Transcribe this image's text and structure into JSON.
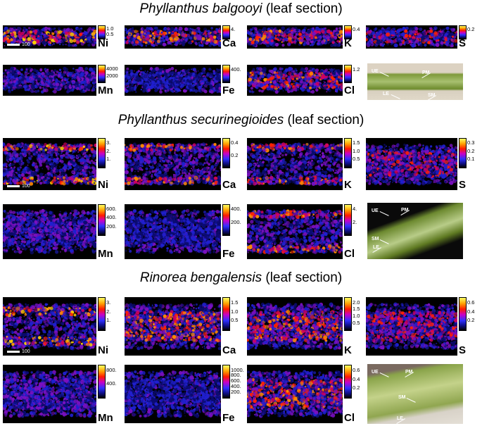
{
  "sections": [
    {
      "species": "Phyllanthus balgooyi",
      "suffix": " (leaf section)",
      "scale_label": "100",
      "maps": [
        {
          "element": "Ni",
          "ticks": [
            "1.0",
            "0.5"
          ]
        },
        {
          "element": "Ca",
          "ticks": [
            "4."
          ]
        },
        {
          "element": "K",
          "ticks": [
            "0.4"
          ]
        },
        {
          "element": "S",
          "ticks": [
            "0.2"
          ]
        },
        {
          "element": "Mn",
          "ticks": [
            "4000",
            "2000"
          ]
        },
        {
          "element": "Fe",
          "ticks": [
            "400."
          ]
        },
        {
          "element": "Cl",
          "ticks": [
            "1.2"
          ]
        }
      ],
      "photo_labels": [
        "UE",
        "PM",
        "LE",
        "SM"
      ]
    },
    {
      "species": "Phyllanthus securinegioides",
      "suffix": " (leaf section)",
      "scale_label": "100",
      "maps": [
        {
          "element": "Ni",
          "ticks": [
            "3.",
            "2.",
            "1."
          ]
        },
        {
          "element": "Ca",
          "ticks": [
            "0.4",
            "0.2"
          ]
        },
        {
          "element": "K",
          "ticks": [
            "1.5",
            "1.0",
            "0.5"
          ]
        },
        {
          "element": "S",
          "ticks": [
            "0.3",
            "0.2",
            "0.1"
          ]
        },
        {
          "element": "Mn",
          "ticks": [
            "600.",
            "400.",
            "200."
          ]
        },
        {
          "element": "Fe",
          "ticks": [
            "400.",
            "200."
          ]
        },
        {
          "element": "Cl",
          "ticks": [
            "4.",
            "2."
          ]
        }
      ],
      "photo_labels": [
        "UE",
        "PM",
        "SM",
        "LE"
      ]
    },
    {
      "species": "Rinorea bengalensis",
      "suffix": " (leaf section)",
      "scale_label": "100",
      "maps": [
        {
          "element": "Ni",
          "ticks": [
            "3.",
            "2.",
            "1."
          ]
        },
        {
          "element": "Ca",
          "ticks": [
            "1.5",
            "1.0",
            "0.5"
          ]
        },
        {
          "element": "K",
          "ticks": [
            "2.0",
            "1.5",
            "1.0",
            "0.5"
          ]
        },
        {
          "element": "S",
          "ticks": [
            "0.6",
            "0.4",
            "0.2"
          ]
        },
        {
          "element": "Mn",
          "ticks": [
            "800.",
            "400."
          ]
        },
        {
          "element": "Fe",
          "ticks": [
            "1000.",
            "800.",
            "600.",
            "400.",
            "200."
          ]
        },
        {
          "element": "Cl",
          "ticks": [
            "0.6",
            "0.4",
            "0.2"
          ]
        }
      ],
      "photo_labels": [
        "UE",
        "PM",
        "SM",
        "LE"
      ]
    }
  ]
}
